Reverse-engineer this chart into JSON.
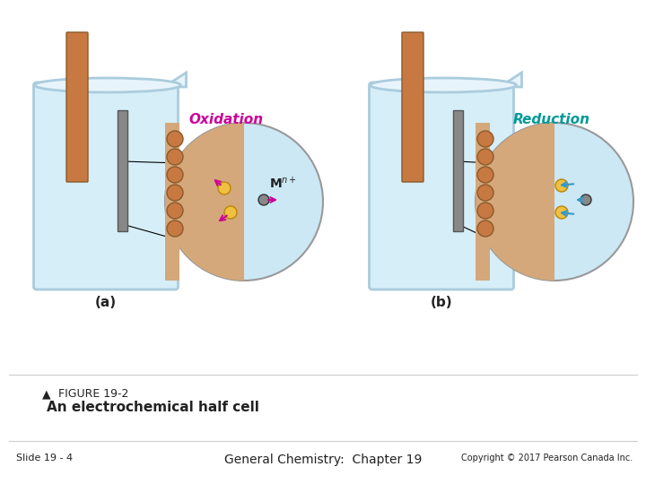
{
  "background_color": "#ffffff",
  "title_triangle": "▲",
  "figure_label": "FIGURE 19-2",
  "figure_caption": "An electrochemical half cell",
  "slide_label": "Slide 19 - 4",
  "center_text": "General Chemistry:  Chapter 19",
  "copyright_text": "Copyright © 2017 Pearson Canada Inc.",
  "label_a": "(a)",
  "label_b": "(b)",
  "oxidation_label": "Oxidation",
  "reduction_label": "Reduction",
  "oxidation_color": "#cc0099",
  "reduction_color": "#009999",
  "beaker_fill": "#d6eef8",
  "beaker_stroke": "#aaccdd",
  "electrode_brown": "#c87941",
  "electrode_gray": "#888888",
  "atom_brown": "#c87941",
  "atom_yellow": "#f0c040",
  "atom_gray": "#888888",
  "arrow_color": "#cc0099",
  "arrow_color_right": "#3399cc",
  "text_dark": "#222222",
  "circle_bg": "#cce8f5",
  "electrode_bg": "#d4a87a"
}
